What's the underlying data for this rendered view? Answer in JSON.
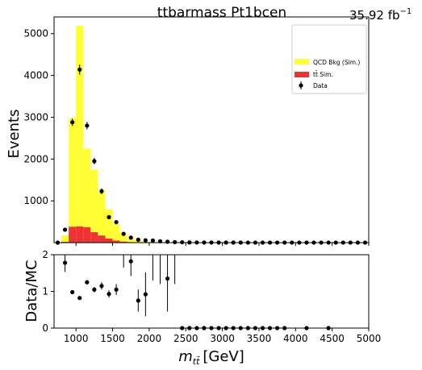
{
  "chart_data": [
    {
      "type": "bar",
      "title": "ttbarmass  Pt1bcen",
      "luminosity_label": "35.92 fb",
      "luminosity_exponent": "−1",
      "xlabel": "",
      "ylabel": "Events",
      "xlim": [
        700,
        5000
      ],
      "ylim": [
        0,
        5400
      ],
      "grid": false,
      "legend_placement": "top-right",
      "x_ticks": [],
      "y_ticks": [
        1000,
        2000,
        3000,
        4000,
        5000
      ],
      "bin_edges": [
        700,
        800,
        900,
        1000,
        1100,
        1200,
        1300,
        1400,
        1500,
        1600,
        1700,
        1800,
        1900,
        2000,
        2100,
        2200,
        2300,
        2400,
        2500,
        2600,
        2700,
        2800,
        2900,
        3000,
        3100,
        3200,
        3300,
        3400,
        3500,
        3600,
        3700,
        3800,
        3900,
        4000,
        4100,
        4200,
        4300,
        4400,
        4500,
        4600,
        4700,
        4800,
        4900,
        5000
      ],
      "series": [
        {
          "name": "QCD Bkg (Sim.)",
          "color": "#ffff33",
          "values": [
            0,
            150,
            2600,
            4800,
            1880,
            1500,
            1050,
            700,
            390,
            200,
            95,
            48,
            27,
            14,
            8,
            5,
            3,
            2,
            1,
            1,
            0,
            0,
            0,
            0,
            0,
            0,
            0,
            0,
            0,
            0,
            0,
            0,
            0,
            0,
            0,
            0,
            0,
            0,
            0,
            0,
            0,
            0,
            0
          ]
        },
        {
          "name": "tt̄ Sim.",
          "color": "#ee3333",
          "values": [
            0,
            20,
            380,
            390,
            370,
            250,
            170,
            100,
            50,
            25,
            12,
            6,
            3,
            2,
            1,
            0,
            0,
            0,
            0,
            0,
            0,
            0,
            0,
            0,
            0,
            0,
            0,
            0,
            0,
            0,
            0,
            0,
            0,
            0,
            0,
            0,
            0,
            0,
            0,
            0,
            0,
            0,
            0
          ]
        }
      ],
      "data_points": {
        "name": "Data",
        "x": [
          750,
          850,
          950,
          1050,
          1150,
          1250,
          1350,
          1450,
          1550,
          1650,
          1750,
          1850,
          1950,
          2050,
          2150,
          2250,
          2350,
          2450,
          2550,
          2650,
          2750,
          2850,
          2950,
          3050,
          3150,
          3250,
          3350,
          3450,
          3550,
          3650,
          3750,
          3850,
          3950,
          4050,
          4150,
          4250,
          4350,
          4450,
          4550,
          4650,
          4750,
          4850,
          4950
        ],
        "y": [
          0,
          310,
          2880,
          4140,
          2800,
          1950,
          1230,
          610,
          490,
          210,
          120,
          70,
          55,
          50,
          32,
          22,
          12,
          8,
          5,
          4,
          3,
          3,
          2,
          2,
          2,
          2,
          1,
          1,
          1,
          1,
          1,
          1,
          1,
          1,
          1,
          1,
          1,
          1,
          1,
          1,
          1,
          1,
          1
        ],
        "yerr": [
          0,
          25,
          90,
          120,
          90,
          80,
          70,
          40,
          40,
          25,
          15,
          10,
          10,
          8,
          6,
          5,
          4,
          3,
          2,
          2,
          2,
          2,
          1,
          1,
          1,
          1,
          1,
          1,
          1,
          1,
          1,
          1,
          1,
          1,
          1,
          1,
          1,
          1,
          1,
          1,
          1,
          1,
          1
        ]
      }
    },
    {
      "type": "scatter",
      "title": "",
      "xlabel": "m",
      "xlabel_sub": "tt̄",
      "xlabel_unit": "[GeV]",
      "ylabel": "Data/MC",
      "xlim": [
        700,
        5000
      ],
      "ylim": [
        0,
        2
      ],
      "grid": false,
      "x_ticks": [
        1000,
        1500,
        2000,
        2500,
        3000,
        3500,
        4000,
        4500,
        5000
      ],
      "y_ticks": [
        0,
        1,
        2
      ],
      "points": {
        "x": [
          850,
          950,
          1050,
          1150,
          1250,
          1350,
          1450,
          1550,
          1650,
          1750,
          1850,
          1950,
          2050,
          2150,
          2250,
          2350,
          2450,
          2550,
          2650,
          2750,
          2850,
          2950,
          3050,
          3150,
          3250,
          3350,
          3450,
          3550,
          3650,
          3750,
          3850,
          4150,
          4450
        ],
        "y": [
          1.78,
          0.98,
          0.82,
          1.25,
          1.05,
          1.15,
          0.93,
          1.05,
          2.05,
          1.82,
          0.75,
          0.92,
          2.3,
          2.2,
          1.35,
          2.3,
          0,
          0,
          0,
          0,
          0,
          0,
          0,
          0,
          0,
          0,
          0,
          0,
          0,
          0,
          0,
          0,
          0
        ],
        "yerr": [
          0.25,
          0.05,
          0.05,
          0.06,
          0.07,
          0.1,
          0.1,
          0.15,
          0.4,
          0.4,
          0.3,
          0.6,
          1.0,
          1.0,
          0.9,
          1.1,
          0,
          0,
          0,
          0,
          0,
          0,
          0,
          0,
          0,
          0,
          0,
          0,
          0,
          0,
          0,
          0,
          0
        ]
      }
    }
  ]
}
